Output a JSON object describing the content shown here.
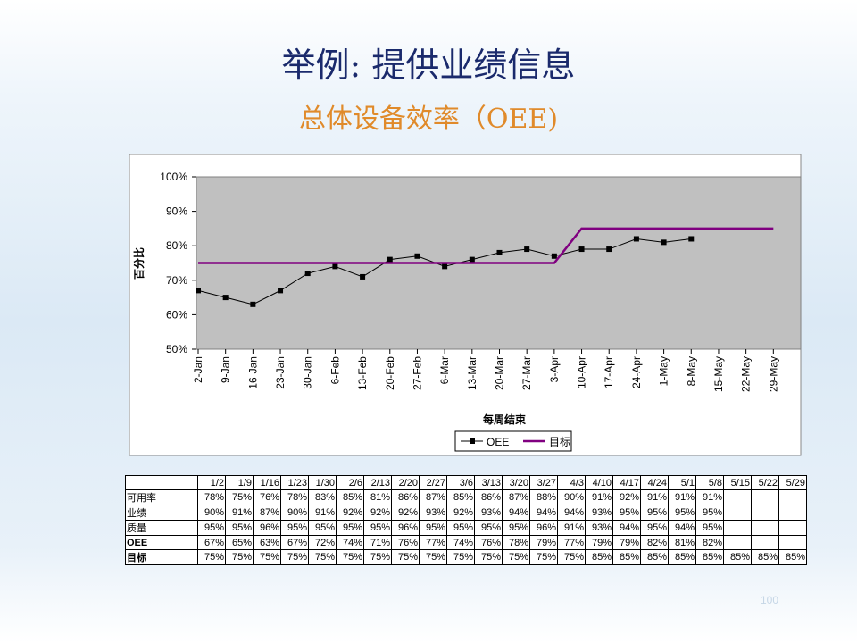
{
  "title": "举例: 提供业绩信息",
  "subtitle": "总体设备效率（OEE)",
  "chart_data": {
    "type": "line",
    "categories": [
      "2-Jan",
      "9-Jan",
      "16-Jan",
      "23-Jan",
      "30-Jan",
      "6-Feb",
      "13-Feb",
      "20-Feb",
      "27-Feb",
      "6-Mar",
      "13-Mar",
      "20-Mar",
      "27-Mar",
      "3-Apr",
      "10-Apr",
      "17-Apr",
      "24-Apr",
      "1-May",
      "8-May",
      "15-May",
      "22-May",
      "29-May"
    ],
    "series": [
      {
        "name": "OEE",
        "color": "#000000",
        "values": [
          67,
          65,
          63,
          67,
          72,
          74,
          71,
          76,
          77,
          74,
          76,
          78,
          79,
          77,
          79,
          79,
          82,
          81,
          82,
          null,
          null,
          null
        ]
      },
      {
        "name": "目标",
        "color": "#800080",
        "values": [
          75,
          75,
          75,
          75,
          75,
          75,
          75,
          75,
          75,
          75,
          75,
          75,
          75,
          75,
          85,
          85,
          85,
          85,
          85,
          85,
          85,
          85
        ]
      }
    ],
    "ylim": [
      50,
      100
    ],
    "yticks": [
      {
        "value": 50,
        "label": "50%"
      },
      {
        "value": 60,
        "label": "60%"
      },
      {
        "value": 70,
        "label": "70%"
      },
      {
        "value": 80,
        "label": "80%"
      },
      {
        "value": 90,
        "label": "90%"
      },
      {
        "value": 100,
        "label": "100%"
      }
    ],
    "ylabel": "百分比",
    "xlabel": "每周结束",
    "legend": "bottom"
  },
  "table": {
    "columns": [
      "1/2",
      "1/9",
      "1/16",
      "1/23",
      "1/30",
      "2/6",
      "2/13",
      "2/20",
      "2/27",
      "3/6",
      "3/13",
      "3/20",
      "3/27",
      "4/3",
      "4/10",
      "4/17",
      "4/24",
      "5/1",
      "5/8",
      "5/15",
      "5/22",
      "5/29"
    ],
    "rows": [
      {
        "label": "可用率",
        "cells": [
          "78%",
          "75%",
          "76%",
          "78%",
          "83%",
          "85%",
          "81%",
          "86%",
          "87%",
          "85%",
          "86%",
          "87%",
          "88%",
          "90%",
          "91%",
          "92%",
          "91%",
          "91%",
          "91%",
          null,
          null,
          null
        ]
      },
      {
        "label": "业绩",
        "cells": [
          "90%",
          "91%",
          "87%",
          "90%",
          "91%",
          "92%",
          "92%",
          "92%",
          "93%",
          "92%",
          "93%",
          "94%",
          "94%",
          "94%",
          "93%",
          "95%",
          "95%",
          "95%",
          "95%",
          null,
          null,
          null
        ]
      },
      {
        "label": "质量",
        "cells": [
          "95%",
          "95%",
          "96%",
          "95%",
          "95%",
          "95%",
          "95%",
          "96%",
          "95%",
          "95%",
          "95%",
          "95%",
          "96%",
          "91%",
          "93%",
          "94%",
          "95%",
          "94%",
          "95%",
          null,
          null,
          null
        ]
      },
      {
        "label": "OEE",
        "cells": [
          "67%",
          "65%",
          "63%",
          "67%",
          "72%",
          "74%",
          "71%",
          "76%",
          "77%",
          "74%",
          "76%",
          "78%",
          "79%",
          "77%",
          "79%",
          "79%",
          "82%",
          "81%",
          "82%",
          null,
          null,
          null
        ]
      },
      {
        "label": "目标",
        "cells": [
          "75%",
          "75%",
          "75%",
          "75%",
          "75%",
          "75%",
          "75%",
          "75%",
          "75%",
          "75%",
          "75%",
          "75%",
          "75%",
          "75%",
          "85%",
          "85%",
          "85%",
          "85%",
          "85%",
          "85%",
          "85%",
          "85%"
        ]
      }
    ]
  },
  "page_number": "100"
}
